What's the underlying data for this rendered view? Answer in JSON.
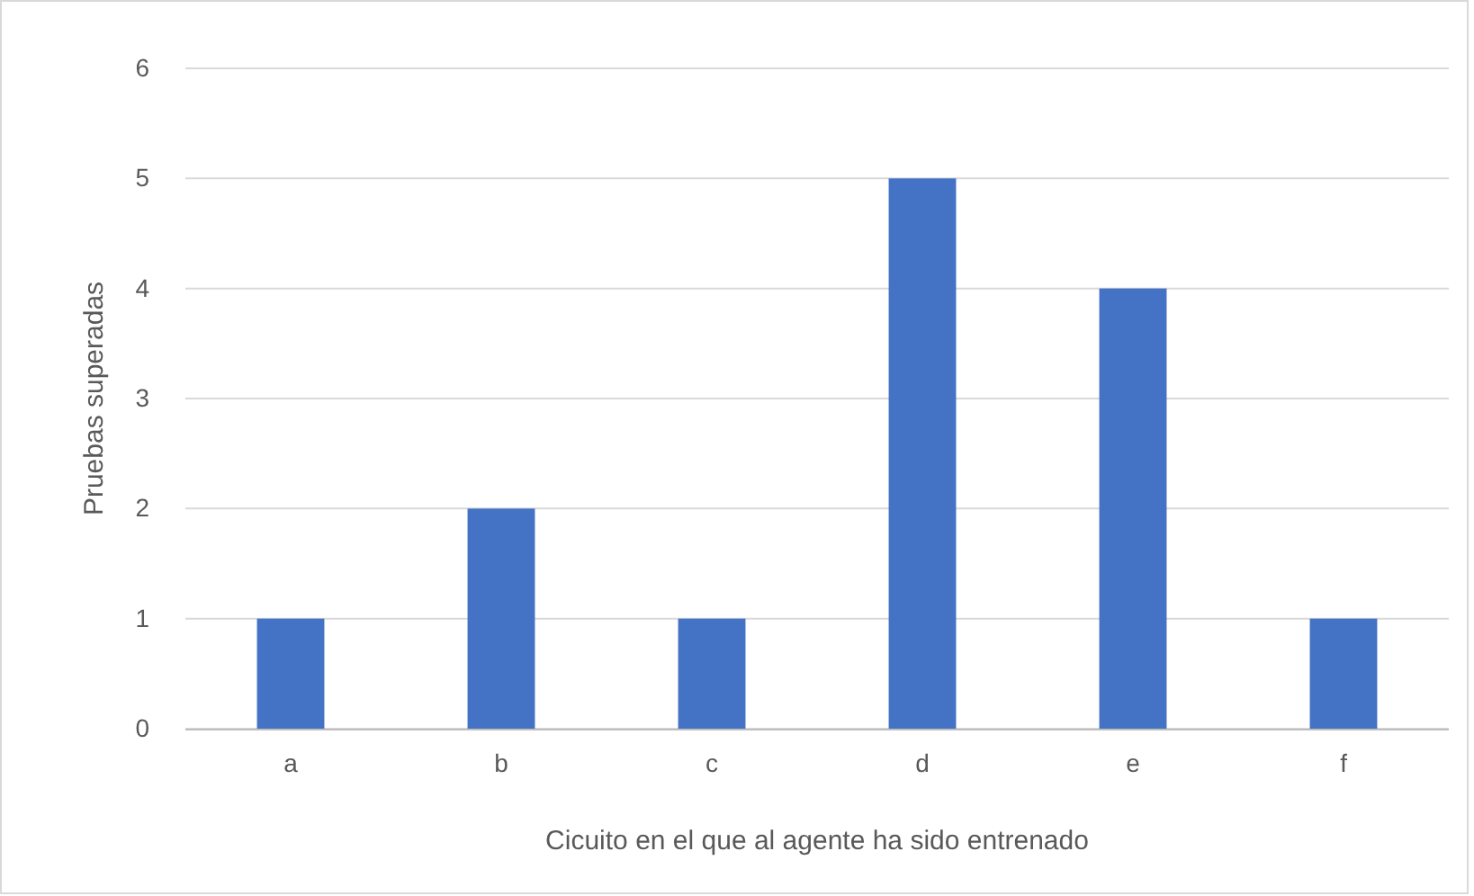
{
  "chart_data": {
    "type": "bar",
    "categories": [
      "a",
      "b",
      "c",
      "d",
      "e",
      "f"
    ],
    "values": [
      1,
      2,
      1,
      5,
      4,
      1
    ],
    "color": "#4472c4",
    "xlabel": "Cicuito en el que al agente ha sido entrenado",
    "ylabel": "Pruebas superadas",
    "ylim": [
      0,
      6
    ],
    "yticks": [
      0,
      1,
      2,
      3,
      4,
      5,
      6
    ],
    "grid": "y"
  }
}
